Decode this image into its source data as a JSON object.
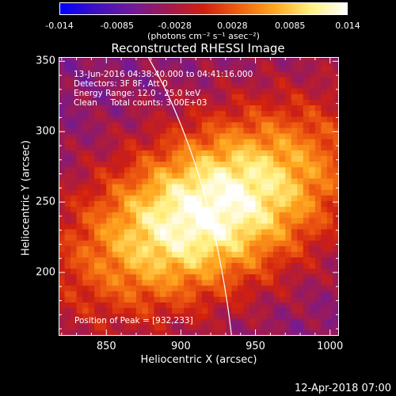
{
  "colorbar": {
    "ticks": [
      "-0.014",
      "-0.0085",
      "-0.0028",
      "0.0028",
      "0.0085",
      "0.014"
    ],
    "unit_label": "(photons cm⁻² s⁻¹ asec⁻²)",
    "colors": [
      "#0000ff",
      "#4010c0",
      "#701a9a",
      "#a01a50",
      "#d02010",
      "#f06010",
      "#ffa820",
      "#fff080",
      "#ffffff"
    ]
  },
  "chart_data": {
    "type": "heatmap",
    "title": "Reconstructed RHESSI Image",
    "xlabel": "Heliocentric X (arcsec)",
    "ylabel": "Heliocentric Y (arcsec)",
    "xlim": [
      818,
      1006
    ],
    "ylim": [
      155,
      353
    ],
    "xticks": [
      850,
      900,
      950,
      1000
    ],
    "yticks": [
      200,
      250,
      300,
      350
    ],
    "peak": [
      932,
      233
    ],
    "annotations": {
      "line1": "13-Jun-2016 04:38:40.000 to 04:41:16.000",
      "line2": "Detectors: 3F 8F, Att 0",
      "line3": "Energy Range: 12.0 - 25.0 keV",
      "line4": "Clean     Total counts: 3.00E+03",
      "peak_label": "Position of Peak = [932,233]"
    },
    "limb_curve": [
      [
        878,
        353
      ],
      [
        890,
        330
      ],
      [
        902,
        300
      ],
      [
        912,
        270
      ],
      [
        920,
        240
      ],
      [
        926,
        210
      ],
      [
        931,
        180
      ],
      [
        934,
        155
      ]
    ],
    "pixel_size_arcsec": 4
  },
  "footer": {
    "date": "12-Apr-2018 07:00"
  }
}
